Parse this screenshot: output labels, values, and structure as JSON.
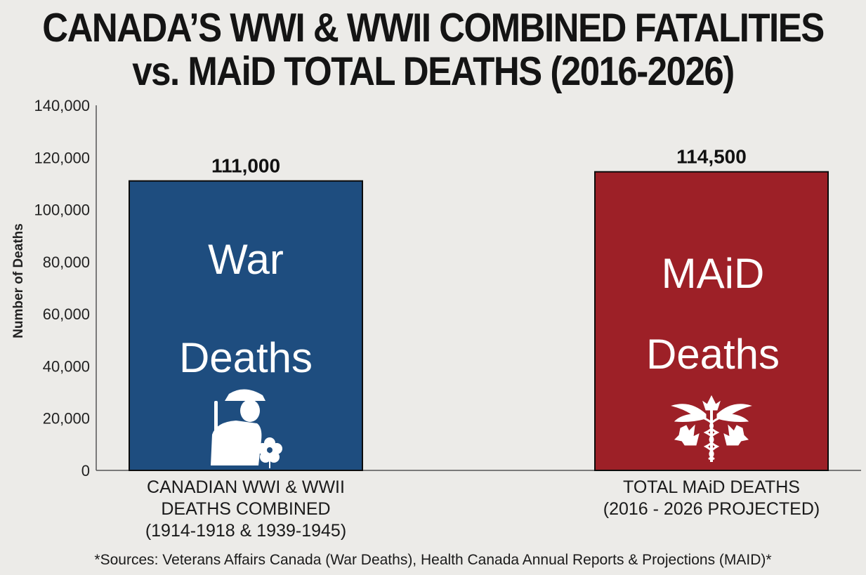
{
  "title_lines": [
    "CANADA’S WWI & WWII COMBINED FATALITIES",
    "vs. MAiD TOTAL DEATHS (2016-2026)"
  ],
  "colors": {
    "war": "#1e4d7f",
    "maid": "#9d2027",
    "bar_edge": "#0c0c0c"
  },
  "icons": {
    "war": "soldier-with-poppy-icon",
    "maid": "caduceus-with-maple-leaf-icon"
  },
  "chart_data": {
    "type": "bar",
    "title": "CANADA’S WWI & WWII COMBINED FATALITIES vs. MAiD TOTAL DEATHS (2016-2026)",
    "xlabel": "",
    "ylabel": "Number of Deaths",
    "ylim": [
      0,
      140000
    ],
    "yticks": [
      0,
      20000,
      40000,
      60000,
      80000,
      100000,
      120000,
      140000
    ],
    "ytick_labels": [
      "0",
      "20,000",
      "40,000",
      "60,000",
      "80,000",
      "100,000",
      "120,000",
      "140,000"
    ],
    "grid": false,
    "categories": [
      {
        "lines": [
          "CANADIAN WWI & WWII",
          "DEATHS COMBINED",
          "(1914-1918 & 1939-1945)"
        ],
        "inner_text": [
          "War",
          "Deaths"
        ],
        "value": 111000,
        "value_label": "111,000",
        "color": "#1e4d7f"
      },
      {
        "lines": [
          "TOTAL MAiD DEATHS",
          "(2016 - 2026 PROJECTED)"
        ],
        "inner_text": [
          "MAiD",
          "Deaths"
        ],
        "value": 114500,
        "value_label": "114,500",
        "color": "#9d2027"
      }
    ],
    "values": [
      111000,
      114500
    ]
  },
  "source_note": "*Sources: Veterans Affairs Canada (War Deaths), Health Canada Annual Reports & Projections (MAID)*"
}
